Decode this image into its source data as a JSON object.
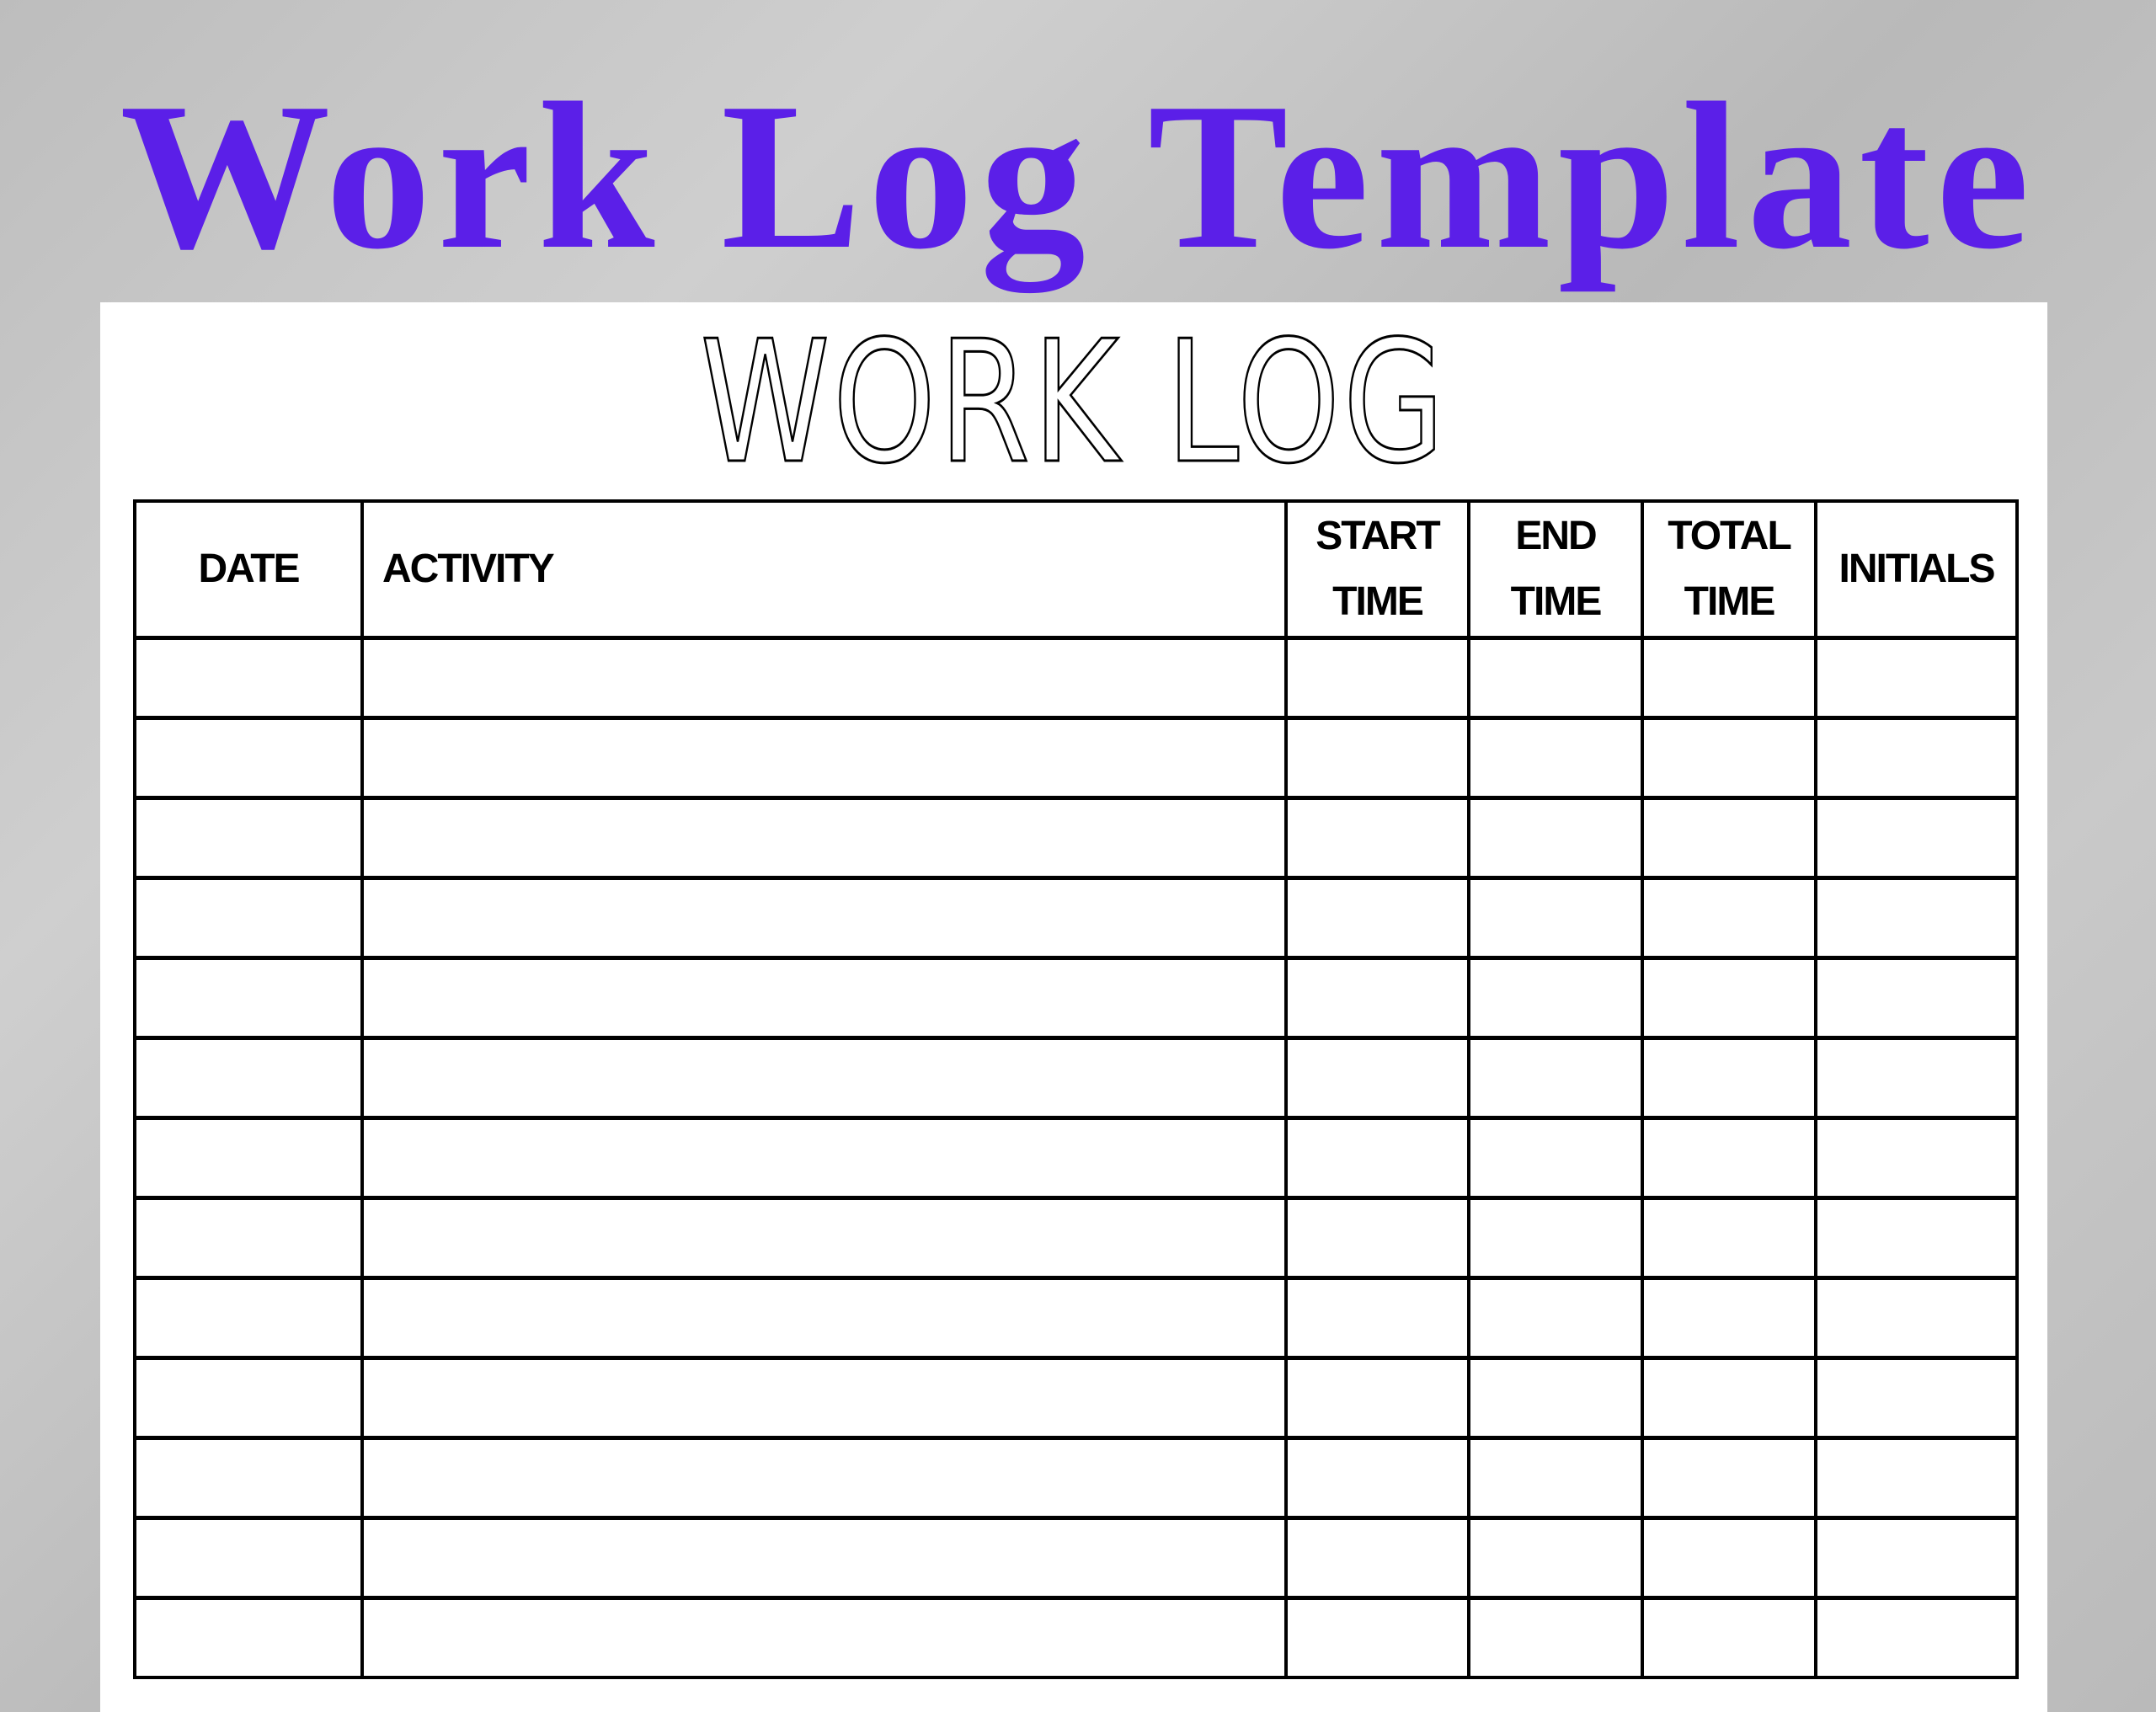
{
  "banner": {
    "title": "Work Log Template",
    "color": "#5b1fe8"
  },
  "sheet": {
    "title": "WORK LOG",
    "columns": [
      {
        "key": "date",
        "label": "DATE"
      },
      {
        "key": "activity",
        "label": "ACTIVITY"
      },
      {
        "key": "start_time",
        "label": "START TIME"
      },
      {
        "key": "end_time",
        "label": "END TIME"
      },
      {
        "key": "total_time",
        "label": "TOTAL TIME"
      },
      {
        "key": "initials",
        "label": "INITIALS"
      }
    ],
    "empty_rows": 13
  }
}
